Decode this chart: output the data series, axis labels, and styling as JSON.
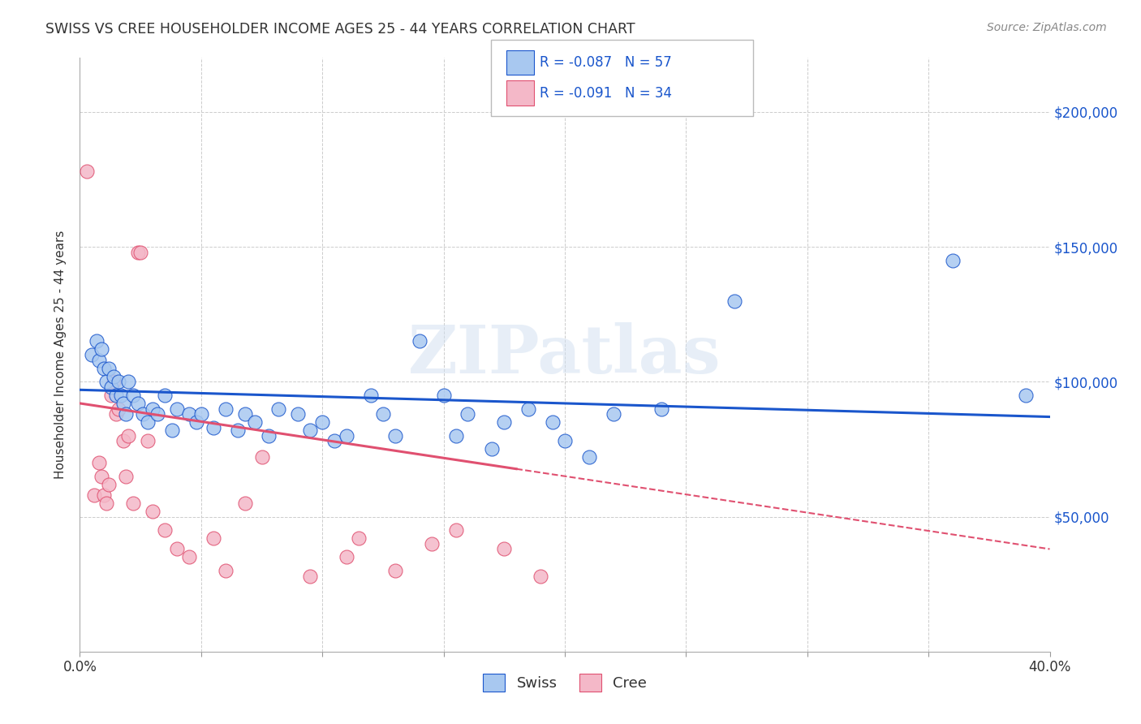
{
  "title": "SWISS VS CREE HOUSEHOLDER INCOME AGES 25 - 44 YEARS CORRELATION CHART",
  "source": "Source: ZipAtlas.com",
  "ylabel": "Householder Income Ages 25 - 44 years",
  "xlim": [
    0.0,
    0.4
  ],
  "ylim": [
    0,
    220000
  ],
  "yticks": [
    0,
    50000,
    100000,
    150000,
    200000
  ],
  "ytick_labels": [
    "",
    "$50,000",
    "$100,000",
    "$150,000",
    "$200,000"
  ],
  "xticks": [
    0.0,
    0.05,
    0.1,
    0.15,
    0.2,
    0.25,
    0.3,
    0.35,
    0.4
  ],
  "xtick_labels": [
    "0.0%",
    "",
    "",
    "",
    "",
    "",
    "",
    "",
    "40.0%"
  ],
  "swiss_color": "#a8c8f0",
  "cree_color": "#f4b8c8",
  "swiss_line_color": "#1a56cc",
  "cree_line_color": "#e05070",
  "swiss_R": -0.087,
  "swiss_N": 57,
  "cree_R": -0.091,
  "cree_N": 34,
  "background_color": "#ffffff",
  "grid_color": "#cccccc",
  "watermark": "ZIPatlas",
  "swiss_x": [
    0.005,
    0.007,
    0.008,
    0.009,
    0.01,
    0.011,
    0.012,
    0.013,
    0.014,
    0.015,
    0.016,
    0.017,
    0.018,
    0.019,
    0.02,
    0.022,
    0.024,
    0.026,
    0.028,
    0.03,
    0.032,
    0.035,
    0.038,
    0.04,
    0.045,
    0.048,
    0.05,
    0.055,
    0.06,
    0.065,
    0.068,
    0.072,
    0.078,
    0.082,
    0.09,
    0.095,
    0.1,
    0.105,
    0.11,
    0.12,
    0.125,
    0.13,
    0.14,
    0.15,
    0.155,
    0.16,
    0.17,
    0.175,
    0.185,
    0.195,
    0.2,
    0.21,
    0.22,
    0.24,
    0.27,
    0.36,
    0.39
  ],
  "swiss_y": [
    110000,
    115000,
    108000,
    112000,
    105000,
    100000,
    105000,
    98000,
    102000,
    95000,
    100000,
    95000,
    92000,
    88000,
    100000,
    95000,
    92000,
    88000,
    85000,
    90000,
    88000,
    95000,
    82000,
    90000,
    88000,
    85000,
    88000,
    83000,
    90000,
    82000,
    88000,
    85000,
    80000,
    90000,
    88000,
    82000,
    85000,
    78000,
    80000,
    95000,
    88000,
    80000,
    115000,
    95000,
    80000,
    88000,
    75000,
    85000,
    90000,
    85000,
    78000,
    72000,
    88000,
    90000,
    130000,
    145000,
    95000
  ],
  "cree_x": [
    0.003,
    0.006,
    0.008,
    0.009,
    0.01,
    0.011,
    0.012,
    0.013,
    0.014,
    0.015,
    0.016,
    0.018,
    0.019,
    0.02,
    0.022,
    0.024,
    0.025,
    0.028,
    0.03,
    0.035,
    0.04,
    0.045,
    0.055,
    0.06,
    0.068,
    0.075,
    0.095,
    0.11,
    0.115,
    0.13,
    0.145,
    0.155,
    0.175,
    0.19
  ],
  "cree_y": [
    178000,
    58000,
    70000,
    65000,
    58000,
    55000,
    62000,
    95000,
    100000,
    88000,
    90000,
    78000,
    65000,
    80000,
    55000,
    148000,
    148000,
    78000,
    52000,
    45000,
    38000,
    35000,
    42000,
    30000,
    55000,
    72000,
    28000,
    35000,
    42000,
    30000,
    40000,
    45000,
    38000,
    28000
  ]
}
